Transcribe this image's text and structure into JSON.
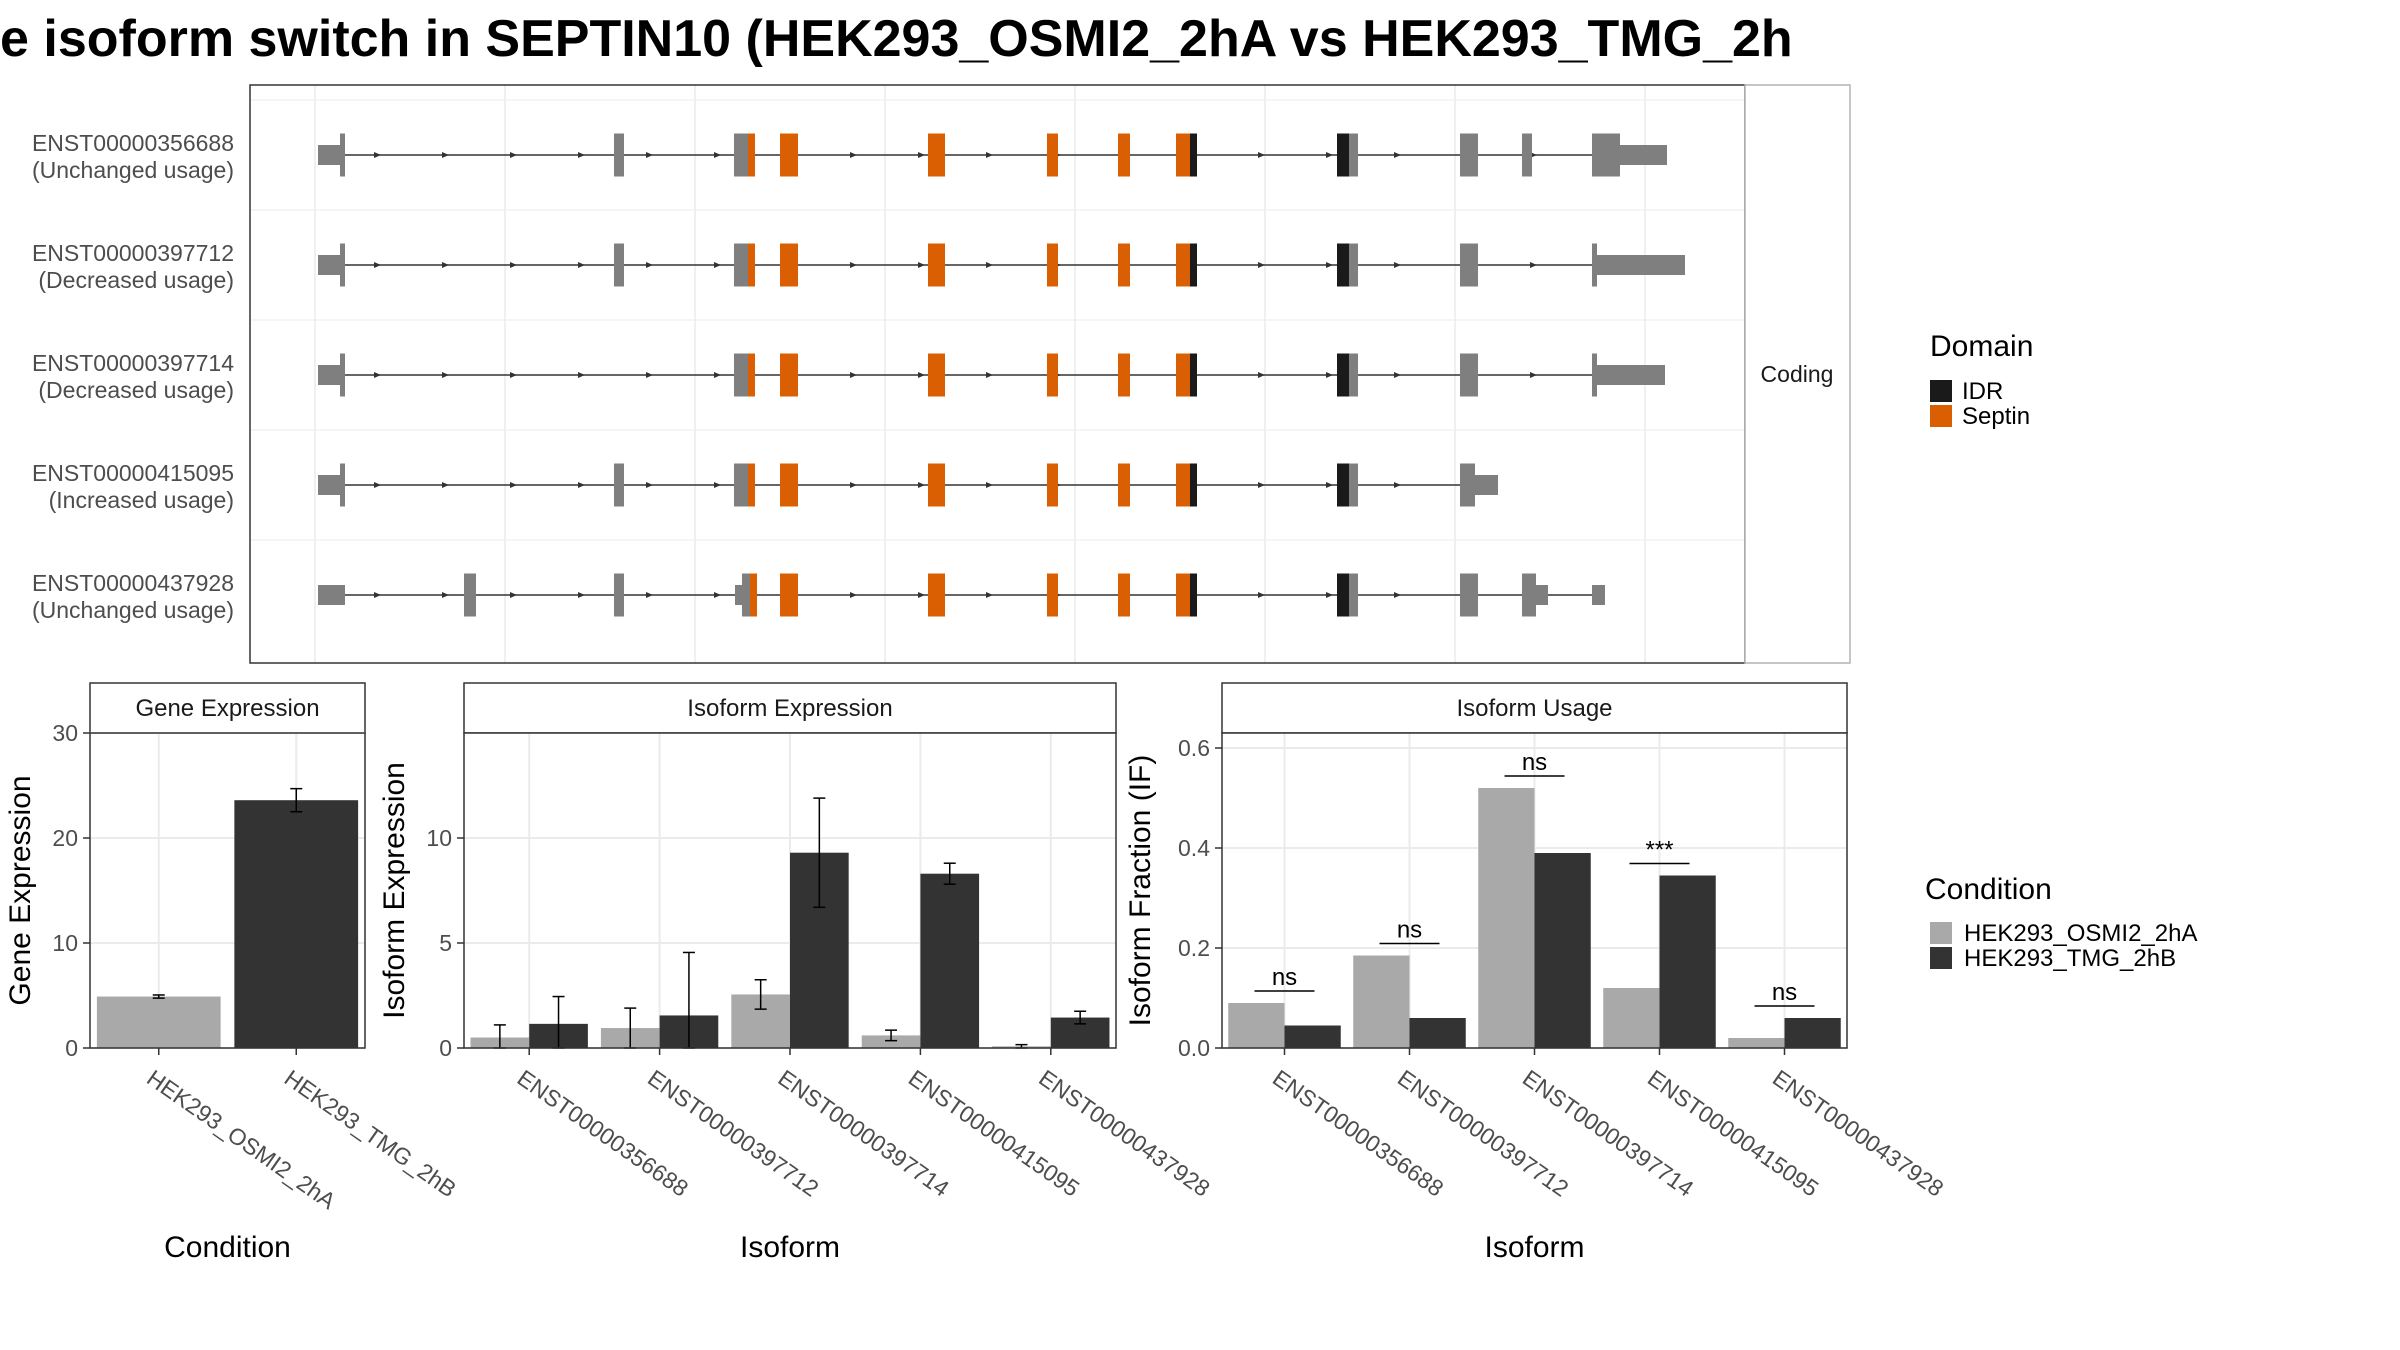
{
  "title": "e isoform switch in SEPTIN10 (HEK293_OSMI2_2hA vs HEK293_TMG_2h",
  "colors": {
    "exon": "#7f7f7f",
    "idr": "#1a1a1a",
    "septin": "#d95f02",
    "cond1": "#a9a9a9",
    "cond2": "#333333",
    "grid": "#ebebeb",
    "panel_border": "#333333",
    "strip_bg": "#ffffff"
  },
  "chart_data": [
    {
      "type": "gene-structure",
      "strip_label": "Coding",
      "transcripts": [
        {
          "id": "ENST00000356688",
          "usage": "(Unchanged usage)"
        },
        {
          "id": "ENST00000397712",
          "usage": "(Decreased usage)"
        },
        {
          "id": "ENST00000397714",
          "usage": "(Decreased usage)"
        },
        {
          "id": "ENST00000415095",
          "usage": "(Increased usage)"
        },
        {
          "id": "ENST00000437928",
          "usage": "(Unchanged usage)"
        }
      ],
      "legend": {
        "title": "Domain",
        "entries": [
          {
            "label": "IDR",
            "color_key": "idr"
          },
          {
            "label": "Septin",
            "color_key": "septin"
          }
        ]
      }
    },
    {
      "type": "bar",
      "strip": "Gene Expression",
      "xlabel": "Condition",
      "ylabel": "Gene Expression",
      "ylim": [
        0,
        30
      ],
      "yticks": [
        0,
        10,
        20,
        30
      ],
      "categories": [
        "HEK293_OSMI2_2hA",
        "HEK293_TMG_2hB"
      ],
      "values": [
        4.9,
        23.6
      ],
      "errors": [
        0.15,
        1.1
      ],
      "color_keys": [
        "cond1",
        "cond2"
      ]
    },
    {
      "type": "bar",
      "strip": "Isoform Expression",
      "xlabel": "Isoform",
      "ylabel": "Isoform Expression",
      "ylim": [
        0,
        15
      ],
      "yticks": [
        0,
        5,
        10
      ],
      "categories": [
        "ENST00000356688",
        "ENST00000397712",
        "ENST00000397714",
        "ENST00000415095",
        "ENST00000437928"
      ],
      "series": [
        {
          "name": "HEK293_OSMI2_2hA",
          "color_key": "cond1",
          "values": [
            0.5,
            0.95,
            2.55,
            0.6,
            0.08
          ],
          "errors": [
            0.6,
            0.95,
            0.7,
            0.25,
            0.08
          ]
        },
        {
          "name": "HEK293_TMG_2hB",
          "color_key": "cond2",
          "values": [
            1.15,
            1.55,
            9.3,
            8.3,
            1.45
          ],
          "errors": [
            1.3,
            3.0,
            2.6,
            0.5,
            0.3
          ]
        }
      ]
    },
    {
      "type": "bar",
      "strip": "Isoform Usage",
      "xlabel": "Isoform",
      "ylabel": "Isoform Fraction (IF)",
      "ylim": [
        0,
        0.63
      ],
      "yticks": [
        0.0,
        0.2,
        0.4,
        0.6
      ],
      "ytick_labels": [
        "0.0",
        "0.2",
        "0.4",
        "0.6"
      ],
      "categories": [
        "ENST00000356688",
        "ENST00000397712",
        "ENST00000397714",
        "ENST00000415095",
        "ENST00000437928"
      ],
      "series": [
        {
          "name": "HEK293_OSMI2_2hA",
          "color_key": "cond1",
          "values": [
            0.09,
            0.185,
            0.52,
            0.12,
            0.02
          ]
        },
        {
          "name": "HEK293_TMG_2hB",
          "color_key": "cond2",
          "values": [
            0.045,
            0.06,
            0.39,
            0.345,
            0.06
          ]
        }
      ],
      "significance": [
        "ns",
        "ns",
        "ns",
        "***",
        "ns"
      ]
    }
  ],
  "condition_legend": {
    "title": "Condition",
    "entries": [
      {
        "label": "HEK293_OSMI2_2hA",
        "color_key": "cond1"
      },
      {
        "label": "HEK293_TMG_2hB",
        "color_key": "cond2"
      }
    ]
  }
}
